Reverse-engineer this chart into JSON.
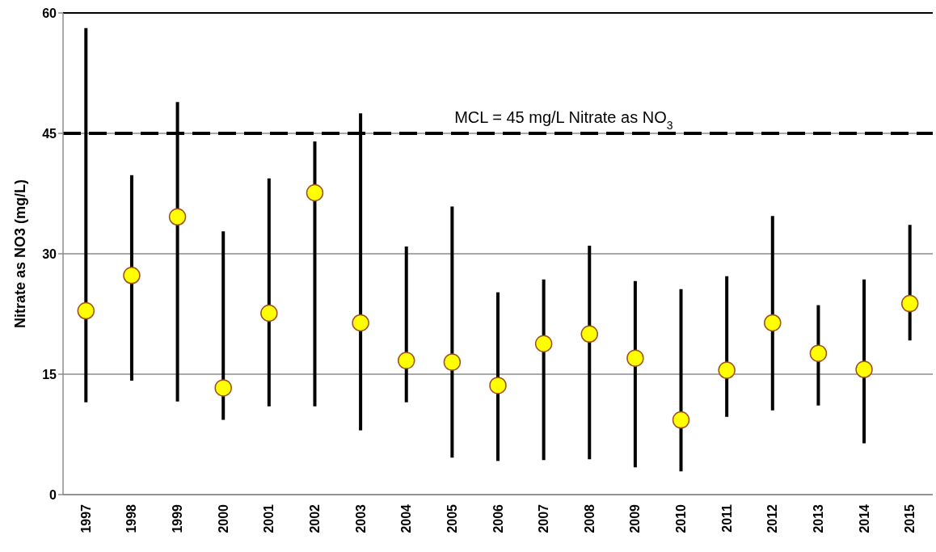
{
  "chart_data": {
    "type": "scatter",
    "ylabel": "Nitrate  as NO3 (mg/L)",
    "categories": [
      "1997",
      "1998",
      "1999",
      "2000",
      "2001",
      "2002",
      "2003",
      "2004",
      "2005",
      "2006",
      "2007",
      "2008",
      "2009",
      "2010",
      "2011",
      "2012",
      "2013",
      "2014",
      "2015"
    ],
    "series": [
      {
        "color": "#ffff00",
        "values": [
          22.9,
          27.3,
          34.6,
          13.3,
          22.6,
          37.6,
          21.4,
          16.7,
          16.5,
          13.6,
          18.8,
          20.0,
          17.0,
          9.3,
          15.5,
          21.4,
          17.6,
          15.6,
          23.8
        ],
        "errors": [
          [
            11.5,
            58.1
          ],
          [
            14.2,
            39.8
          ],
          [
            11.6,
            48.9
          ],
          [
            9.3,
            32.8
          ],
          [
            11.0,
            39.4
          ],
          [
            11.0,
            44.0
          ],
          [
            8.0,
            47.5
          ],
          [
            11.5,
            30.9
          ],
          [
            4.6,
            35.9
          ],
          [
            4.2,
            25.2
          ],
          [
            4.3,
            26.8
          ],
          [
            4.4,
            31.0
          ],
          [
            3.4,
            26.6
          ],
          [
            2.9,
            25.6
          ],
          [
            9.7,
            27.2
          ],
          [
            10.5,
            34.7
          ],
          [
            11.1,
            23.6
          ],
          [
            6.4,
            26.8
          ],
          [
            19.2,
            33.6
          ]
        ]
      }
    ],
    "ylim": [
      0,
      60
    ],
    "yticks": [
      0,
      15,
      30,
      45,
      60
    ],
    "grid": "y",
    "marker": "circle",
    "ref_lines": [
      {
        "axis": "y",
        "value": 45,
        "label": "MCL = 45 mg/L Nitrate as NO$_{3}$",
        "color": "#000000",
        "line_style": "dashed"
      }
    ]
  }
}
